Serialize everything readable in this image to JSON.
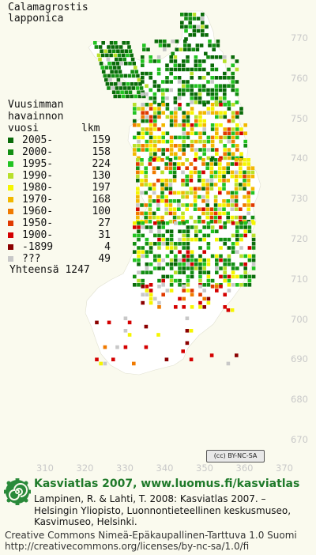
{
  "title": {
    "line1": "Calamagrostis",
    "line2": "lapponica"
  },
  "legend": {
    "heading_line1": "Vuusimman",
    "heading_line2": "havainnon",
    "heading_line3": "vuosi",
    "count_header": "lkm",
    "entries": [
      {
        "label": "2005-",
        "count": "159",
        "color": "#0a6b0a"
      },
      {
        "label": "2000-",
        "count": "158",
        "color": "#138f13"
      },
      {
        "label": "1995-",
        "count": "224",
        "color": "#22c422"
      },
      {
        "label": "1990-",
        "count": "130",
        "color": "#b8e02a"
      },
      {
        "label": "1980-",
        "count": "197",
        "color": "#f5f500"
      },
      {
        "label": "1970-",
        "count": "168",
        "color": "#f2b800"
      },
      {
        "label": "1960-",
        "count": "100",
        "color": "#f07a00"
      },
      {
        "label": "1950-",
        "count": "27",
        "color": "#e03a00"
      },
      {
        "label": "1900-",
        "count": "31",
        "color": "#d40000"
      },
      {
        "label": "-1899",
        "count": "4",
        "color": "#8b0000"
      },
      {
        "label": "???",
        "count": "49",
        "color": "#c8c8c8"
      }
    ],
    "total_label": "Yhteensä",
    "total_count": "1247"
  },
  "axes": {
    "y_ticks": [
      "770",
      "760",
      "750",
      "740",
      "730",
      "720",
      "710",
      "700",
      "690",
      "680",
      "670"
    ],
    "x_ticks": [
      "310",
      "320",
      "330",
      "340",
      "350",
      "360",
      "370"
    ]
  },
  "license_badge": "BY-NC-SA",
  "footer": {
    "heading": "Kasviatlas 2007, www.luomus.fi/kasviatlas",
    "citation_line1": "Lampinen, R. & Lahti, T. 2008: Kasviatlas 2007. –",
    "citation_line2": "Helsingin Yliopisto, Luonnontieteellinen keskusmuseo,",
    "citation_line3": "Kasvimuseo, Helsinki.",
    "license_line1": "Creative Commons Nimeä-Epäkaupallinen-Tarttuva 1.0 Suomi",
    "license_line2": "http://creativecommons.org/licenses/by-nc-sa/1.0/fi"
  },
  "colors": {
    "land": "#ffffff",
    "background": "#fafaee",
    "axis_label": "#c9c9c9",
    "footer_heading": "#1f7a2a"
  }
}
